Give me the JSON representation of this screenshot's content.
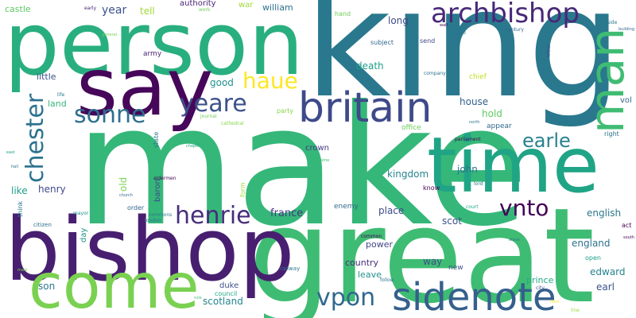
{
  "palette": {
    "dark_purple": "#440154",
    "purple": "#482475",
    "indigo": "#414487",
    "blue": "#355f8d",
    "steel_blue": "#2a788e",
    "teal": "#21918c",
    "sea_green": "#22a884",
    "green": "#44bf70",
    "light_green": "#7ad151",
    "yellow": "#bddf26",
    "bright_yellow": "#fde725"
  },
  "words": [
    {
      "text": "make",
      "c": "#35b779"
    },
    {
      "text": "king",
      "c": "#2a788e"
    },
    {
      "text": "great",
      "c": "#3fbc73"
    },
    {
      "text": "person",
      "c": "#29af7f"
    },
    {
      "text": "bishop",
      "c": "#481f70"
    },
    {
      "text": "say",
      "c": "#46075a"
    },
    {
      "text": "come",
      "c": "#7ad151"
    },
    {
      "text": "time",
      "c": "#20a486"
    },
    {
      "text": "man",
      "c": "#3fbc73"
    },
    {
      "text": "britain",
      "c": "#3e4a89"
    },
    {
      "text": "sidenote",
      "c": "#355f8d"
    },
    {
      "text": "archbishop",
      "c": "#482878"
    },
    {
      "text": "chester",
      "c": "#2c728e"
    },
    {
      "text": "yeare",
      "c": "#3b528b"
    },
    {
      "text": "sonne",
      "c": "#2d708e"
    },
    {
      "text": "henrie",
      "c": "#472d7b"
    },
    {
      "text": "haue",
      "c": "#fde725"
    },
    {
      "text": "vnto",
      "c": "#440154"
    },
    {
      "text": "vpon",
      "c": "#31688e"
    },
    {
      "text": "earle",
      "c": "#26828e"
    },
    {
      "text": "year",
      "c": "#3b528b"
    },
    {
      "text": "tell",
      "c": "#a0da39"
    },
    {
      "text": "authority",
      "c": "#482475"
    },
    {
      "text": "war",
      "c": "#a0da39"
    },
    {
      "text": "william",
      "c": "#2c728e"
    },
    {
      "text": "castle",
      "c": "#5ec962"
    },
    {
      "text": "early",
      "c": "#482475"
    },
    {
      "text": "work",
      "c": "#6ece58"
    },
    {
      "text": "long",
      "c": "#3e4a89"
    },
    {
      "text": "send",
      "c": "#3e4a89"
    },
    {
      "text": "subject",
      "c": "#31688e"
    },
    {
      "text": "hand",
      "c": "#6ece58"
    },
    {
      "text": "death",
      "c": "#1f9e89"
    },
    {
      "text": "army",
      "c": "#482475"
    },
    {
      "text": "france",
      "c": "#443983"
    },
    {
      "text": "good",
      "c": "#21918c"
    },
    {
      "text": "little",
      "c": "#3b528b"
    },
    {
      "text": "land",
      "c": "#35b779"
    },
    {
      "text": "life",
      "c": "#2a788e"
    },
    {
      "text": "house",
      "c": "#355f8d"
    },
    {
      "text": "hold",
      "c": "#5ec962"
    },
    {
      "text": "chief",
      "c": "#bddf26"
    },
    {
      "text": "vol",
      "c": "#31688e"
    },
    {
      "text": "office",
      "c": "#6ece58"
    },
    {
      "text": "appear",
      "c": "#31688e"
    },
    {
      "text": "party",
      "c": "#86d549"
    },
    {
      "text": "journal",
      "c": "#6ece58"
    },
    {
      "text": "state",
      "c": "#2a788e"
    },
    {
      "text": "crown",
      "c": "#443983"
    },
    {
      "text": "parliament",
      "c": "#440154"
    },
    {
      "text": "right",
      "c": "#2c728e"
    },
    {
      "text": "john",
      "c": "#2c728e"
    },
    {
      "text": "kingdom",
      "c": "#25848e"
    },
    {
      "text": "henry",
      "c": "#3e4a89"
    },
    {
      "text": "like",
      "c": "#1f9e89"
    },
    {
      "text": "old",
      "c": "#7ad151"
    },
    {
      "text": "form",
      "c": "#a0da39"
    },
    {
      "text": "baron",
      "c": "#3e4a89"
    },
    {
      "text": "aldermen",
      "c": "#440154"
    },
    {
      "text": "order",
      "c": "#31688e"
    },
    {
      "text": "mayor",
      "c": "#21918c"
    },
    {
      "text": "commons",
      "c": "#2a788e"
    },
    {
      "text": "london",
      "c": "#2c728e"
    },
    {
      "text": "know",
      "c": "#440154"
    },
    {
      "text": "lord",
      "c": "#2c728e"
    },
    {
      "text": "english",
      "c": "#2a788e"
    },
    {
      "text": "scot",
      "c": "#3b528b"
    },
    {
      "text": "place",
      "c": "#3e4a89"
    },
    {
      "text": "enemy",
      "c": "#31688e"
    },
    {
      "text": "england",
      "c": "#2c728e"
    },
    {
      "text": "court",
      "c": "#22a884"
    },
    {
      "text": "act",
      "c": "#440154"
    },
    {
      "text": "think",
      "c": "#2a788e"
    },
    {
      "text": "citizen",
      "c": "#2c728e"
    },
    {
      "text": "day",
      "c": "#21918c"
    },
    {
      "text": "power",
      "c": "#414487"
    },
    {
      "text": "common",
      "c": "#440154"
    },
    {
      "text": "country",
      "c": "#472d7b"
    },
    {
      "text": "way",
      "c": "#3b528b"
    },
    {
      "text": "leave",
      "c": "#21918c"
    },
    {
      "text": "new",
      "c": "#3b528b"
    },
    {
      "text": "edward",
      "c": "#25848e"
    },
    {
      "text": "open",
      "c": "#1f9e89"
    },
    {
      "text": "earl",
      "c": "#3b528b"
    },
    {
      "text": "prince",
      "c": "#22a884"
    },
    {
      "text": "son",
      "c": "#2a788e"
    },
    {
      "text": "duke",
      "c": "#3b528b"
    },
    {
      "text": "council",
      "c": "#22a884"
    },
    {
      "text": "scotland",
      "c": "#25848e"
    },
    {
      "text": "railway",
      "c": "#2a788e"
    },
    {
      "text": "follow",
      "c": "#2c728e"
    },
    {
      "text": "city",
      "c": "#3b528b"
    },
    {
      "text": "rule",
      "c": "#44bf70"
    },
    {
      "text": "line",
      "c": "#a0da39"
    },
    {
      "text": "letter",
      "c": "#3b528b"
    },
    {
      "text": "century",
      "c": "#31688e"
    },
    {
      "text": "company",
      "c": "#2c728e"
    },
    {
      "text": "general",
      "c": "#6ece58"
    },
    {
      "text": "wall",
      "c": "#440154"
    },
    {
      "text": "side",
      "c": "#2a788e"
    },
    {
      "text": "building",
      "c": "#31688e"
    },
    {
      "text": "name",
      "c": "#44bf70"
    },
    {
      "text": "church",
      "c": "#31688e"
    },
    {
      "text": "mark",
      "c": "#7ad151"
    },
    {
      "text": "east",
      "c": "#1f9e89"
    },
    {
      "text": "bold",
      "c": "#2c728e"
    },
    {
      "text": "north",
      "c": "#2c728e"
    },
    {
      "text": "south",
      "c": "#440154"
    },
    {
      "text": "chapel",
      "c": "#22a884"
    },
    {
      "text": "hold",
      "c": "#fde725"
    },
    {
      "text": "cathedral",
      "c": "#86d549"
    },
    {
      "text": "hall",
      "c": "#2c728e"
    },
    {
      "text": "stone",
      "c": "#2a788e"
    }
  ]
}
